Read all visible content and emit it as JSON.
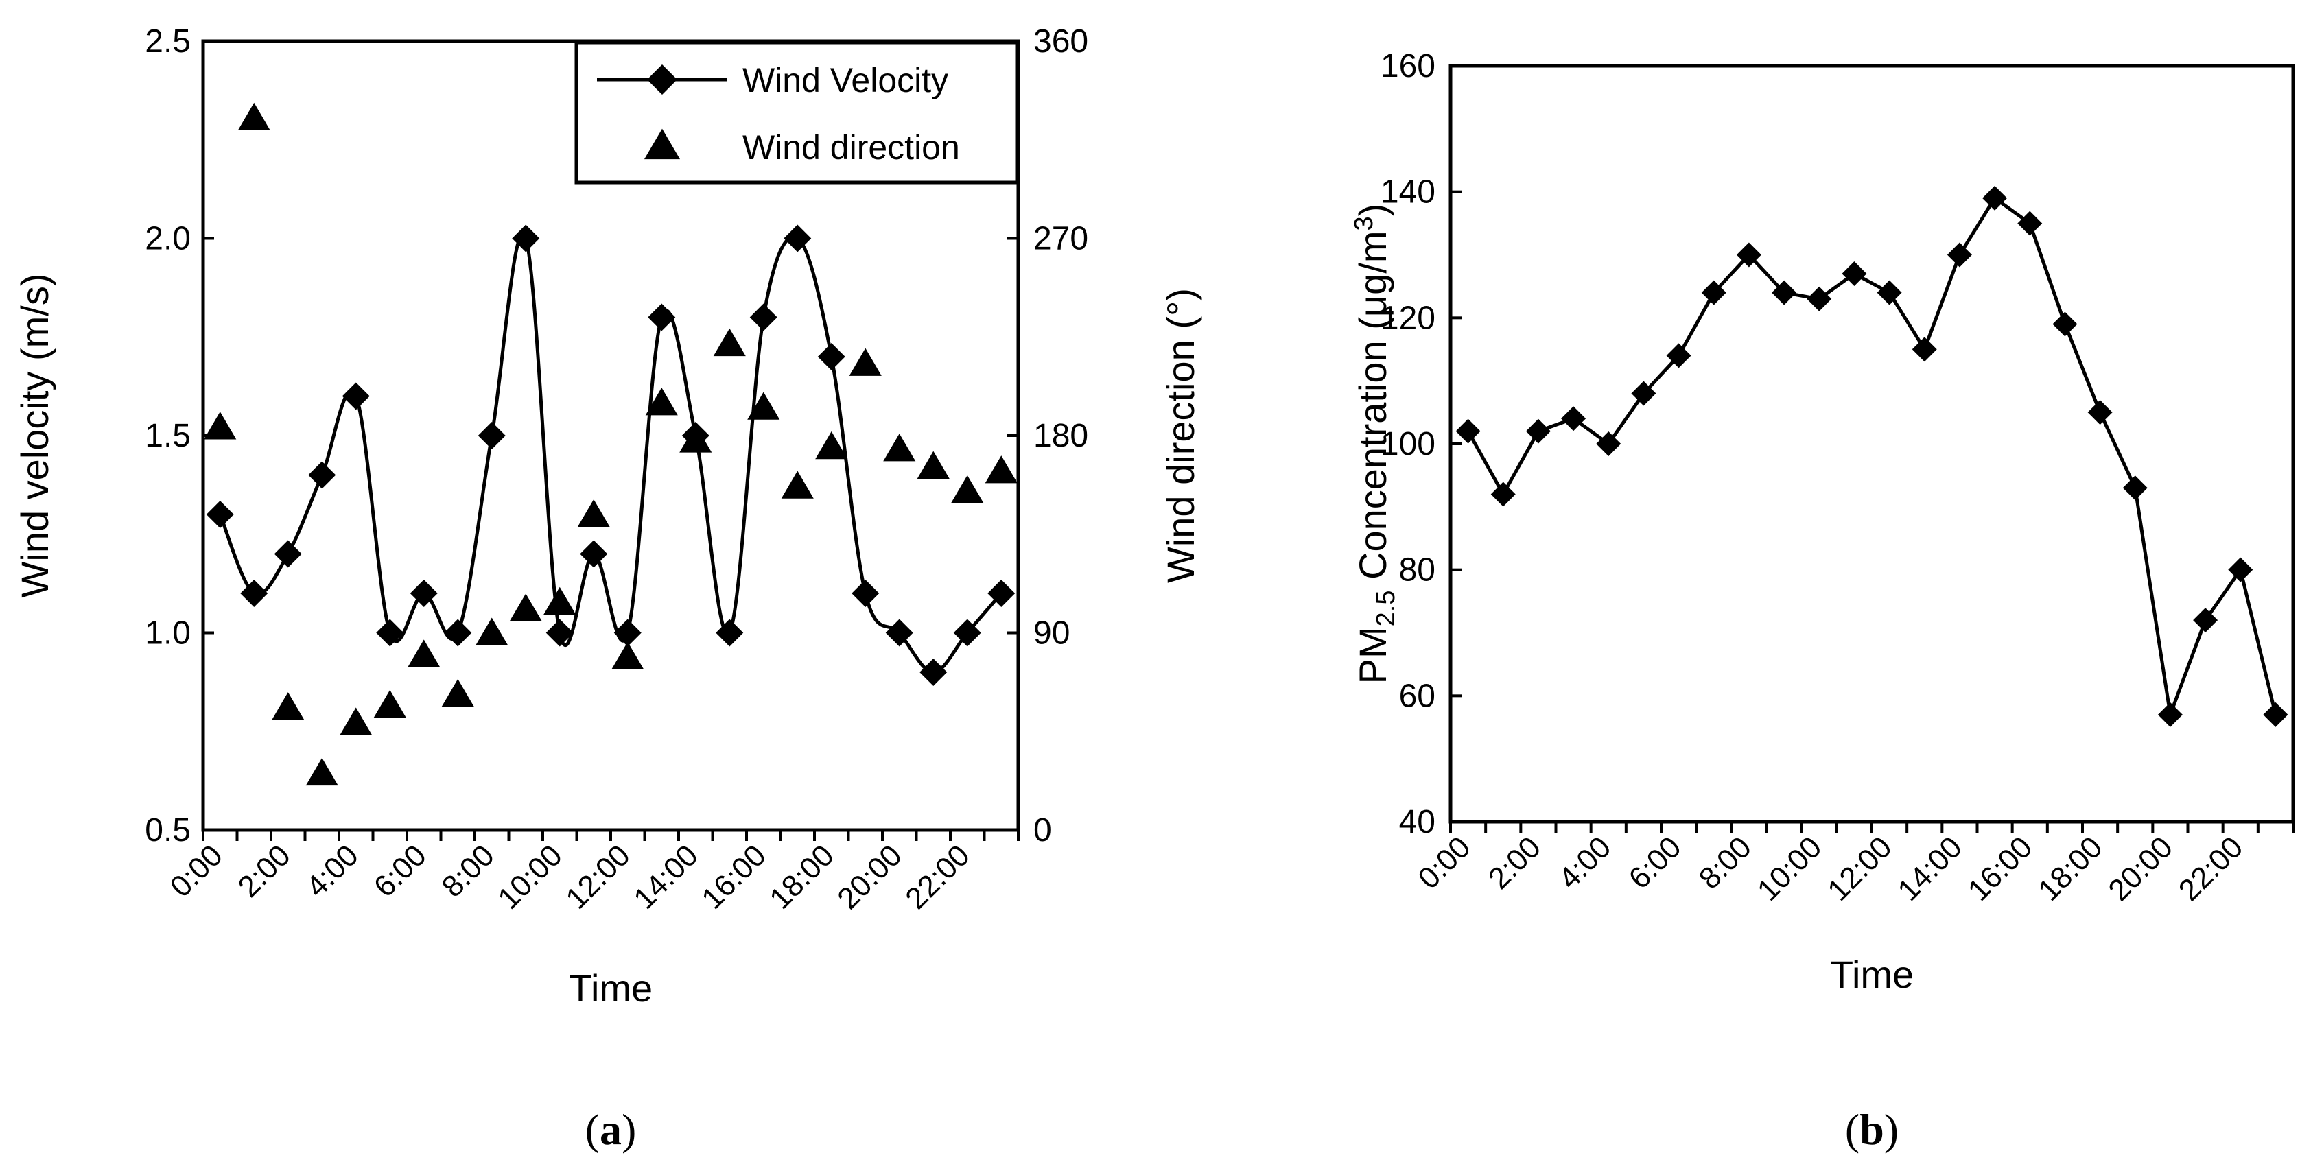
{
  "chart_data": [
    {
      "panel_label": "a",
      "type": "line+scatter",
      "xlabel": "Time",
      "ylabel": "Wind velocity (m/s)",
      "y2label": "Wind direction (°)",
      "ylim": [
        0.5,
        2.5
      ],
      "y2lim": [
        0,
        360
      ],
      "yticks": [
        "0.5",
        "1.0",
        "1.5",
        "2.0",
        "2.5"
      ],
      "y2ticks": [
        "0",
        "90",
        "180",
        "270",
        "360"
      ],
      "xticks": [
        "0:00",
        "2:00",
        "4:00",
        "6:00",
        "8:00",
        "10:00",
        "12:00",
        "14:00",
        "16:00",
        "18:00",
        "20:00",
        "22:00"
      ],
      "legend": [
        "Wind Velocity",
        "Wind direction"
      ],
      "legend_position": "top-right",
      "hours": [
        0,
        1,
        2,
        3,
        4,
        5,
        6,
        7,
        8,
        9,
        10,
        11,
        12,
        13,
        14,
        15,
        16,
        17,
        18,
        19,
        20,
        21,
        22,
        23
      ],
      "series": [
        {
          "name": "Wind Velocity",
          "axis": "left",
          "marker": "diamond",
          "line": "smooth",
          "values": [
            1.3,
            1.1,
            1.2,
            1.4,
            1.6,
            1.0,
            1.1,
            1.0,
            1.5,
            2.0,
            1.0,
            1.2,
            1.0,
            1.8,
            1.5,
            1.0,
            1.8,
            2.0,
            1.7,
            1.1,
            1.0,
            0.9,
            1.0,
            1.1
          ]
        },
        {
          "name": "Wind direction",
          "axis": "right",
          "marker": "triangle",
          "line": "none",
          "values": [
            184,
            325,
            56,
            26,
            49,
            57,
            80,
            62,
            90,
            101,
            104,
            144,
            79,
            195,
            178,
            222,
            193,
            157,
            175,
            213,
            174,
            166,
            155,
            164
          ]
        }
      ]
    },
    {
      "panel_label": "b",
      "type": "line",
      "xlabel": "Time",
      "ylabel_main": "PM",
      "ylabel_sub": "2.5",
      "ylabel_rest": " Concentration (μg/m",
      "ylabel_sup": "3",
      "ylabel_end": ")",
      "ylim": [
        40,
        160
      ],
      "yticks": [
        "40",
        "60",
        "80",
        "100",
        "120",
        "140",
        "160"
      ],
      "xticks": [
        "0:00",
        "2:00",
        "4:00",
        "6:00",
        "8:00",
        "10:00",
        "12:00",
        "14:00",
        "16:00",
        "18:00",
        "20:00",
        "22:00"
      ],
      "hours": [
        0,
        1,
        2,
        3,
        4,
        5,
        6,
        7,
        8,
        9,
        10,
        11,
        12,
        13,
        14,
        15,
        16,
        17,
        18,
        19,
        20,
        21,
        22,
        23
      ],
      "series": [
        {
          "name": "PM2.5",
          "marker": "diamond",
          "line": "straight",
          "values": [
            102,
            92,
            102,
            104,
            100,
            108,
            114,
            124,
            130,
            124,
            123,
            127,
            124,
            115,
            130,
            139,
            135,
            119,
            105,
            93,
            57,
            72,
            80,
            57
          ]
        }
      ]
    }
  ]
}
